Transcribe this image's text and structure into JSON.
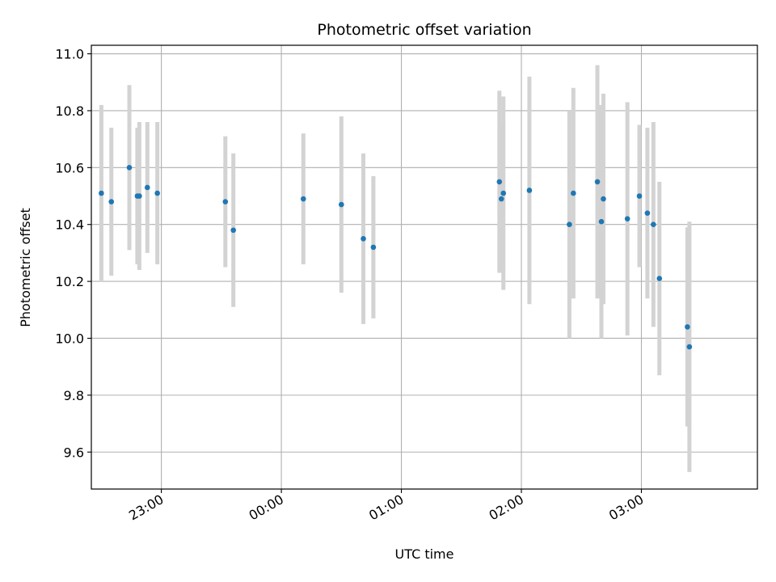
{
  "chart_data": {
    "type": "scatter",
    "title": "Photometric offset variation",
    "xlabel": "UTC time",
    "ylabel": "Photometric offset",
    "x_axis_kind": "time-of-day (UTC), spanning midnight",
    "xlim": [
      "22:25",
      "03:58"
    ],
    "ylim": [
      9.47,
      11.03
    ],
    "x_ticks": [
      "23:00",
      "00:00",
      "01:00",
      "02:00",
      "03:00"
    ],
    "y_ticks": [
      "9.6",
      "9.8",
      "10.0",
      "10.2",
      "10.4",
      "10.6",
      "10.8",
      "11.0"
    ],
    "grid": true,
    "legend": "none",
    "colors": {
      "marker": "#1f77b4",
      "errorbar": "#d3d3d3",
      "grid": "#b0b0b0"
    },
    "series": [
      {
        "marker": "dot",
        "points": [
          {
            "x": "22:30",
            "y": 10.51,
            "err": 0.31
          },
          {
            "x": "22:35",
            "y": 10.48,
            "err": 0.26
          },
          {
            "x": "22:44",
            "y": 10.6,
            "err": 0.29
          },
          {
            "x": "22:48",
            "y": 10.5,
            "err": 0.24
          },
          {
            "x": "22:49",
            "y": 10.5,
            "err": 0.26
          },
          {
            "x": "22:53",
            "y": 10.53,
            "err": 0.23
          },
          {
            "x": "22:58",
            "y": 10.51,
            "err": 0.25
          },
          {
            "x": "23:32",
            "y": 10.48,
            "err": 0.23
          },
          {
            "x": "23:36",
            "y": 10.38,
            "err": 0.27
          },
          {
            "x": "00:11",
            "y": 10.49,
            "err": 0.23
          },
          {
            "x": "00:30",
            "y": 10.47,
            "err": 0.31
          },
          {
            "x": "00:41",
            "y": 10.35,
            "err": 0.3
          },
          {
            "x": "00:46",
            "y": 10.32,
            "err": 0.25
          },
          {
            "x": "01:49",
            "y": 10.55,
            "err": 0.32
          },
          {
            "x": "01:50",
            "y": 10.49,
            "err": 0.26
          },
          {
            "x": "01:51",
            "y": 10.51,
            "err": 0.34
          },
          {
            "x": "02:04",
            "y": 10.52,
            "err": 0.4
          },
          {
            "x": "02:24",
            "y": 10.4,
            "err": 0.4
          },
          {
            "x": "02:26",
            "y": 10.51,
            "err": 0.37
          },
          {
            "x": "02:38",
            "y": 10.55,
            "err": 0.41
          },
          {
            "x": "02:40",
            "y": 10.41,
            "err": 0.41
          },
          {
            "x": "02:41",
            "y": 10.49,
            "err": 0.37
          },
          {
            "x": "02:53",
            "y": 10.42,
            "err": 0.41
          },
          {
            "x": "02:59",
            "y": 10.5,
            "err": 0.25
          },
          {
            "x": "03:03",
            "y": 10.44,
            "err": 0.3
          },
          {
            "x": "03:06",
            "y": 10.4,
            "err": 0.36
          },
          {
            "x": "03:09",
            "y": 10.21,
            "err": 0.34
          },
          {
            "x": "03:23",
            "y": 10.04,
            "err": 0.35
          },
          {
            "x": "03:24",
            "y": 9.97,
            "err": 0.44
          }
        ]
      }
    ]
  }
}
